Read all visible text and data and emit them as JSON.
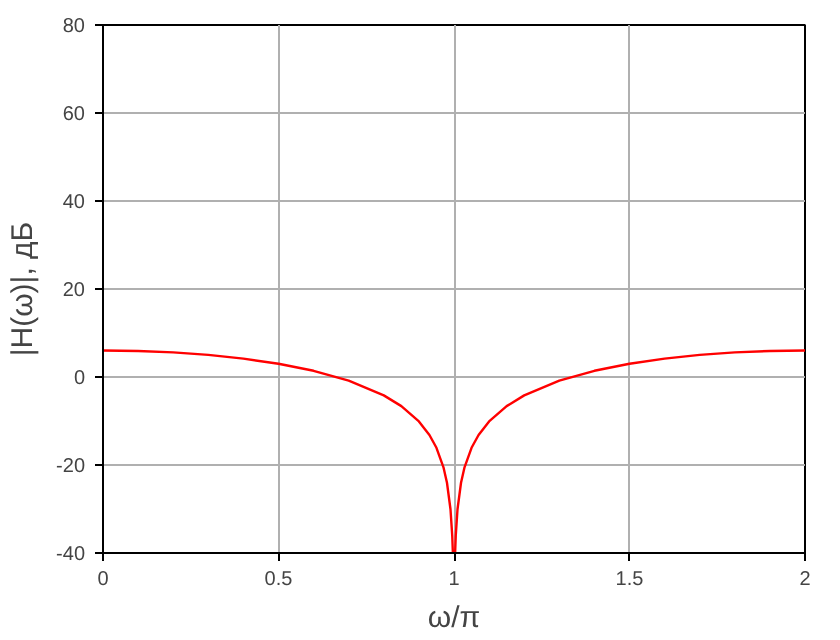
{
  "chart_data": {
    "type": "line",
    "xlabel": "ω/π",
    "ylabel": "|H(ω)|, дБ",
    "xlim": [
      0,
      2
    ],
    "ylim": [
      -40,
      80
    ],
    "xticks": [
      0,
      0.5,
      1,
      1.5,
      2
    ],
    "yticks": [
      -40,
      -20,
      0,
      20,
      40,
      60,
      80
    ],
    "grid": true,
    "marker": "none",
    "line_style": "solid",
    "series": [
      {
        "color": "#ff0000",
        "x": [
          0,
          0.1,
          0.2,
          0.3,
          0.4,
          0.5,
          0.6,
          0.7,
          0.8,
          0.85,
          0.9,
          0.93,
          0.95,
          0.97,
          0.98,
          0.99,
          0.995,
          0.9968,
          1.0032,
          1.005,
          1.01,
          1.02,
          1.03,
          1.05,
          1.07,
          1.1,
          1.15,
          1.2,
          1.3,
          1.4,
          1.5,
          1.6,
          1.7,
          1.8,
          1.9,
          2
        ],
        "values": [
          6.02,
          5.91,
          5.59,
          5.02,
          4.18,
          3.01,
          1.41,
          -0.84,
          -4.18,
          -6.62,
          -10.09,
          -13.18,
          -16.09,
          -20.52,
          -24.04,
          -30.06,
          -36.08,
          -40,
          -40,
          -36.08,
          -30.06,
          -24.04,
          -20.52,
          -16.09,
          -13.18,
          -10.09,
          -6.62,
          -4.18,
          -0.84,
          1.41,
          3.01,
          4.18,
          5.02,
          5.59,
          5.91,
          6.02
        ]
      }
    ]
  }
}
